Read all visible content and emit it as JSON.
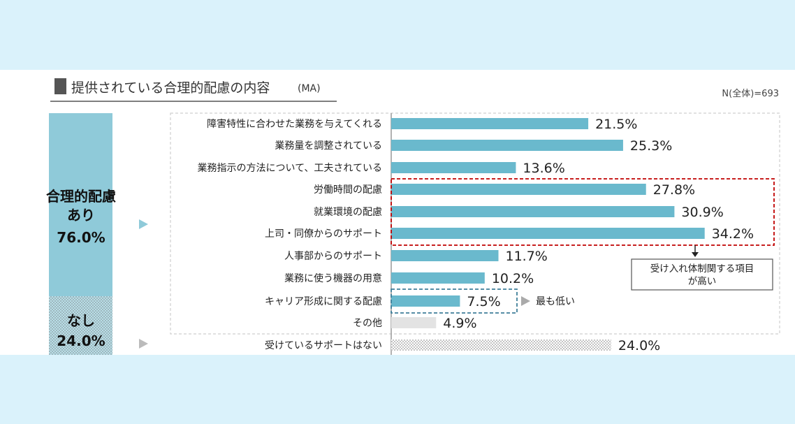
{
  "header": {
    "title": "提供されている合理的配慮の内容",
    "title_suffix": "(MA)",
    "n_label": "N(全体)=693"
  },
  "summary": {
    "yes_label_1": "合理的配慮",
    "yes_label_2": "あり",
    "yes_value": "76.0%",
    "no_label": "なし",
    "no_value": "24.0%"
  },
  "annotations": {
    "highlight_note_line1": "受け入れ体制関する項目",
    "highlight_note_line2": "が高い",
    "lowest_note": "最も低い"
  },
  "colors": {
    "bar": "#6ab9cd",
    "other_bar": "#e3e3e3",
    "side_yes": "#8fcad9",
    "highlight_red": "#c00000",
    "highlight_blue": "#3f7f99",
    "background": "#daf2fb"
  },
  "chart_data": {
    "type": "bar",
    "orientation": "horizontal",
    "title": "提供されている合理的配慮の内容(MA)",
    "categories": [
      "障害特性に合わせた業務を与えてくれる",
      "業務量を調整されている",
      "業務指示の方法について、工夫されている",
      "労働時間の配慮",
      "就業環境の配慮",
      "上司・同僚からのサポート",
      "人事部からのサポート",
      "業務に使う機器の用意",
      "キャリア形成に関する配慮",
      "その他",
      "受けているサポートはない"
    ],
    "values": [
      21.5,
      25.3,
      13.6,
      27.8,
      30.9,
      34.2,
      11.7,
      10.2,
      7.5,
      4.9,
      24.0
    ],
    "value_labels": [
      "21.5%",
      "25.3%",
      "13.6%",
      "27.8%",
      "30.9%",
      "34.2%",
      "11.7%",
      "10.2%",
      "7.5%",
      "4.9%",
      "24.0%"
    ],
    "unit": "%",
    "xlim": [
      0,
      42
    ],
    "grid": false,
    "legend": "none"
  }
}
